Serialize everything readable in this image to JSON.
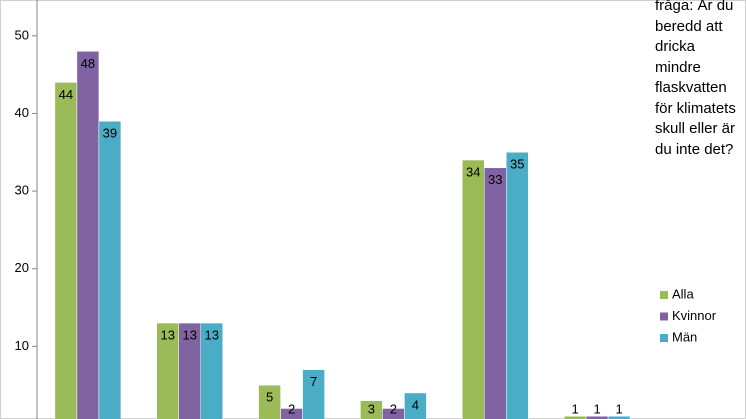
{
  "chart_data": {
    "type": "bar",
    "title": "fråga: Är du beredd att dricka mindre flaskvatten för klimatets skull eller är du inte det?",
    "categories": [
      null,
      null,
      null,
      null,
      null,
      null
    ],
    "series": [
      {
        "name": "Alla",
        "color": "#9bbb59",
        "values": [
          44,
          13,
          5,
          3,
          34,
          1
        ]
      },
      {
        "name": "Kvinnor",
        "color": "#8064a2",
        "values": [
          48,
          13,
          2,
          2,
          33,
          1
        ]
      },
      {
        "name": "Män",
        "color": "#4bacc6",
        "values": [
          39,
          13,
          7,
          4,
          35,
          1
        ]
      }
    ],
    "ylim": [
      0,
      55
    ],
    "yticks": [
      10,
      20,
      30,
      40,
      50
    ],
    "grid": false,
    "legend": "right"
  }
}
